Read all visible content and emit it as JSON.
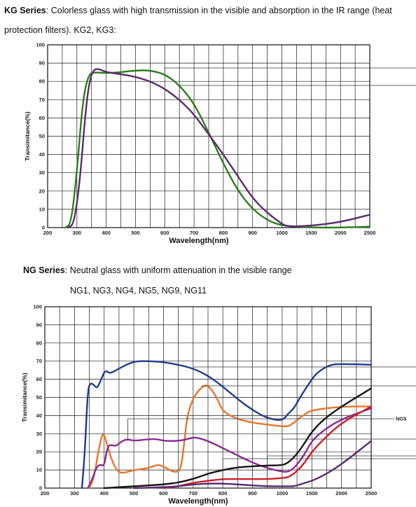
{
  "kg_section": {
    "heading_bold": "KG Series",
    "heading_rest": ": Colorless glass with high transmission in the visible and absorption in the IR range (heat",
    "heading_line2": "protection filters). KG2, KG3:"
  },
  "ng_section": {
    "heading_bold": "NG Series",
    "heading_rest": ": Neutral glass with uniform attenuation in the visible range",
    "subheading": "NG1, NG3, NG4, NG5, NG9, NG11"
  },
  "chart_data": [
    {
      "type": "line",
      "title": "",
      "xlabel": "Wavelength(nm)",
      "ylabel": "Transimitance(%)",
      "x_tick_labels": [
        "200",
        "300",
        "400",
        "500",
        "600",
        "700",
        "800",
        "900",
        "1000",
        "1500",
        "2000",
        "2500"
      ],
      "y_ticks": [
        0,
        10,
        20,
        30,
        40,
        50,
        60,
        70,
        80,
        90,
        100
      ],
      "ylim": [
        0,
        100
      ],
      "grid": true,
      "series": [
        {
          "name": "KG3",
          "color": "#2e7d1f",
          "points": [
            [
              260,
              0
            ],
            [
              280,
              2
            ],
            [
              300,
              30
            ],
            [
              320,
              70
            ],
            [
              340,
              84
            ],
            [
              360,
              85
            ],
            [
              400,
              84.5
            ],
            [
              450,
              85
            ],
            [
              500,
              86
            ],
            [
              550,
              86
            ],
            [
              600,
              84
            ],
            [
              650,
              78
            ],
            [
              700,
              68
            ],
            [
              750,
              52
            ],
            [
              800,
              35
            ],
            [
              850,
              20
            ],
            [
              900,
              10
            ],
            [
              950,
              4
            ],
            [
              1000,
              1
            ],
            [
              1500,
              0
            ],
            [
              2000,
              0
            ],
            [
              2500,
              0.5
            ]
          ]
        },
        {
          "name": "KG2",
          "color": "#5a2c6e",
          "points": [
            [
              270,
              0
            ],
            [
              290,
              2
            ],
            [
              310,
              25
            ],
            [
              330,
              65
            ],
            [
              345,
              82
            ],
            [
              360,
              87
            ],
            [
              380,
              86.5
            ],
            [
              400,
              85
            ],
            [
              450,
              84
            ],
            [
              500,
              82.5
            ],
            [
              550,
              80
            ],
            [
              600,
              76
            ],
            [
              650,
              70
            ],
            [
              700,
              62
            ],
            [
              750,
              51
            ],
            [
              800,
              40
            ],
            [
              850,
              28
            ],
            [
              900,
              16
            ],
            [
              950,
              8
            ],
            [
              1000,
              2
            ],
            [
              1100,
              0.5
            ],
            [
              1500,
              1
            ],
            [
              2000,
              3
            ],
            [
              2500,
              7
            ]
          ]
        }
      ]
    },
    {
      "type": "line",
      "title": "",
      "xlabel": "Wavelength(nm)",
      "ylabel": "Transimitance(%)",
      "x_tick_labels": [
        "200",
        "300",
        "400",
        "500",
        "600",
        "700",
        "800",
        "900",
        "1000",
        "1500",
        "2000",
        "2500"
      ],
      "y_ticks": [
        0,
        10,
        20,
        30,
        40,
        50,
        60,
        70,
        80,
        90,
        100
      ],
      "ylim": [
        0,
        100
      ],
      "grid": true,
      "series": [
        {
          "name": "NG11",
          "color": "#1f3c8c",
          "points": [
            [
              325,
              0
            ],
            [
              335,
              20
            ],
            [
              345,
              55
            ],
            [
              355,
              58
            ],
            [
              365,
              57
            ],
            [
              375,
              55
            ],
            [
              385,
              58
            ],
            [
              395,
              62
            ],
            [
              405,
              65
            ],
            [
              420,
              63
            ],
            [
              450,
              66
            ],
            [
              500,
              70
            ],
            [
              550,
              70
            ],
            [
              600,
              69.5
            ],
            [
              650,
              68
            ],
            [
              700,
              66
            ],
            [
              750,
              62
            ],
            [
              800,
              56
            ],
            [
              850,
              49
            ],
            [
              900,
              43
            ],
            [
              950,
              38.5
            ],
            [
              1000,
              37
            ],
            [
              1100,
              41
            ],
            [
              1200,
              44
            ],
            [
              1300,
              50
            ],
            [
              1400,
              55
            ],
            [
              1500,
              60
            ],
            [
              1600,
              64
            ],
            [
              1800,
              68
            ],
            [
              2000,
              68.5
            ],
            [
              2500,
              68
            ]
          ]
        },
        {
          "name": "NG4",
          "color": "#e8762a",
          "points": [
            [
              350,
              0
            ],
            [
              365,
              5
            ],
            [
              380,
              20
            ],
            [
              395,
              31
            ],
            [
              405,
              27
            ],
            [
              420,
              18
            ],
            [
              440,
              10
            ],
            [
              460,
              8
            ],
            [
              500,
              10
            ],
            [
              550,
              11
            ],
            [
              580,
              13
            ],
            [
              600,
              12
            ],
            [
              630,
              9
            ],
            [
              650,
              9
            ],
            [
              660,
              12
            ],
            [
              670,
              25
            ],
            [
              680,
              40
            ],
            [
              700,
              50
            ],
            [
              730,
              56
            ],
            [
              750,
              57
            ],
            [
              780,
              50
            ],
            [
              800,
              42
            ],
            [
              850,
              38
            ],
            [
              900,
              36
            ],
            [
              950,
              35
            ],
            [
              1000,
              34
            ],
            [
              1100,
              34
            ],
            [
              1200,
              36
            ],
            [
              1300,
              39
            ],
            [
              1400,
              41
            ],
            [
              1500,
              43
            ],
            [
              2000,
              45
            ],
            [
              2500,
              45
            ]
          ]
        },
        {
          "name": "NG5",
          "color": "#8c2a93",
          "points": [
            [
              345,
              0
            ],
            [
              360,
              5
            ],
            [
              375,
              12
            ],
            [
              390,
              13
            ],
            [
              400,
              12
            ],
            [
              410,
              22
            ],
            [
              420,
              24
            ],
            [
              440,
              23
            ],
            [
              460,
              26
            ],
            [
              480,
              27
            ],
            [
              500,
              26
            ],
            [
              550,
              27
            ],
            [
              580,
              27
            ],
            [
              600,
              26
            ],
            [
              650,
              26
            ],
            [
              680,
              27
            ],
            [
              700,
              28
            ],
            [
              720,
              27.5
            ],
            [
              750,
              26
            ],
            [
              800,
              22
            ],
            [
              850,
              18
            ],
            [
              900,
              14
            ],
            [
              950,
              11
            ],
            [
              1000,
              9
            ],
            [
              1100,
              9
            ],
            [
              1200,
              11
            ],
            [
              1300,
              15
            ],
            [
              1400,
              20
            ],
            [
              1500,
              26
            ],
            [
              1700,
              32
            ],
            [
              2000,
              38
            ],
            [
              2500,
              44
            ]
          ]
        },
        {
          "name": "NG1",
          "color": "#141414",
          "points": [
            [
              400,
              0
            ],
            [
              450,
              0.5
            ],
            [
              500,
              1
            ],
            [
              550,
              1.5
            ],
            [
              600,
              2
            ],
            [
              650,
              3
            ],
            [
              700,
              5
            ],
            [
              750,
              8
            ],
            [
              800,
              10
            ],
            [
              850,
              11.5
            ],
            [
              900,
              12
            ],
            [
              950,
              12.5
            ],
            [
              1000,
              12.5
            ],
            [
              1100,
              14
            ],
            [
              1200,
              17
            ],
            [
              1300,
              21
            ],
            [
              1400,
              26
            ],
            [
              1500,
              31
            ],
            [
              1700,
              38
            ],
            [
              2000,
              45
            ],
            [
              2500,
              55
            ]
          ]
        },
        {
          "name": "NG9",
          "color": "#cc1f2a",
          "points": [
            [
              600,
              0
            ],
            [
              650,
              1
            ],
            [
              700,
              3
            ],
            [
              750,
              4
            ],
            [
              800,
              5
            ],
            [
              850,
              5
            ],
            [
              900,
              5
            ],
            [
              950,
              5
            ],
            [
              1000,
              5.5
            ],
            [
              1100,
              6
            ],
            [
              1200,
              8
            ],
            [
              1300,
              11
            ],
            [
              1400,
              15
            ],
            [
              1500,
              20
            ],
            [
              1700,
              27
            ],
            [
              2000,
              36
            ],
            [
              2500,
              45
            ]
          ]
        },
        {
          "name": "NG3",
          "color": "#5a2c6e",
          "points": [
            [
              500,
              0
            ],
            [
              600,
              0.5
            ],
            [
              650,
              1
            ],
            [
              700,
              2
            ],
            [
              750,
              2.5
            ],
            [
              800,
              2.5
            ],
            [
              850,
              2
            ],
            [
              900,
              1.5
            ],
            [
              950,
              1
            ],
            [
              1000,
              1
            ],
            [
              1100,
              1
            ],
            [
              1200,
              1
            ],
            [
              1300,
              2
            ],
            [
              1400,
              3
            ],
            [
              1500,
              4
            ],
            [
              1700,
              7
            ],
            [
              2000,
              13
            ],
            [
              2500,
              26
            ]
          ]
        }
      ]
    }
  ]
}
